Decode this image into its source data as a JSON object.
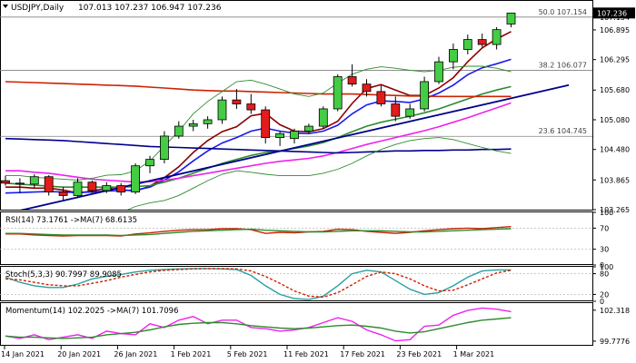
{
  "header": {
    "symbol": "USDJPY,Daily",
    "ohlc": "107.013 107.237 106.947 107.236"
  },
  "chart_data": [
    {
      "type": "candlestick",
      "y_ticks": [
        "107.154",
        "106.895",
        "106.295",
        "105.680",
        "105.080",
        "104.480",
        "103.865",
        "103.265"
      ],
      "last_price": "107.236",
      "fib_levels": [
        {
          "label": "50.0 107.154",
          "price": 107.154
        },
        {
          "label": "38.2 106.077",
          "price": 106.077
        },
        {
          "label": "23.6 104.745",
          "price": 104.745
        }
      ],
      "x_ticks": [
        "14 Jan 2021",
        "20 Jan 2021",
        "26 Jan 2021",
        "1 Feb 2021",
        "5 Feb 2021",
        "11 Feb 2021",
        "17 Feb 2021",
        "23 Feb 2021",
        "1 Mar 2021"
      ],
      "candles": [
        [
          103.85,
          103.95,
          103.75,
          103.8
        ],
        [
          103.8,
          103.9,
          103.6,
          103.78
        ],
        [
          103.78,
          103.98,
          103.7,
          103.93
        ],
        [
          103.93,
          103.96,
          103.55,
          103.62
        ],
        [
          103.62,
          103.72,
          103.45,
          103.55
        ],
        [
          103.55,
          103.9,
          103.5,
          103.82
        ],
        [
          103.82,
          103.85,
          103.6,
          103.65
        ],
        [
          103.65,
          103.82,
          103.6,
          103.75
        ],
        [
          103.75,
          103.8,
          103.55,
          103.62
        ],
        [
          103.62,
          104.2,
          103.58,
          104.15
        ],
        [
          104.15,
          104.35,
          104.0,
          104.28
        ],
        [
          104.28,
          104.85,
          104.2,
          104.75
        ],
        [
          104.75,
          105.05,
          104.7,
          104.95
        ],
        [
          104.95,
          105.08,
          104.85,
          105.0
        ],
        [
          105.0,
          105.15,
          104.9,
          105.08
        ],
        [
          105.08,
          105.55,
          105.0,
          105.48
        ],
        [
          105.48,
          105.7,
          105.3,
          105.4
        ],
        [
          105.4,
          105.6,
          105.2,
          105.28
        ],
        [
          105.28,
          105.35,
          104.6,
          104.72
        ],
        [
          104.72,
          104.85,
          104.55,
          104.8
        ],
        [
          104.7,
          104.9,
          104.6,
          104.85
        ],
        [
          104.85,
          105.0,
          104.8,
          104.95
        ],
        [
          104.95,
          105.35,
          104.9,
          105.3
        ],
        [
          105.3,
          106.0,
          105.25,
          105.95
        ],
        [
          105.95,
          106.2,
          105.75,
          105.8
        ],
        [
          105.8,
          105.9,
          105.55,
          105.65
        ],
        [
          105.65,
          105.78,
          105.35,
          105.4
        ],
        [
          105.4,
          105.55,
          105.05,
          105.15
        ],
        [
          105.15,
          105.4,
          105.1,
          105.3
        ],
        [
          105.3,
          105.95,
          105.25,
          105.85
        ],
        [
          105.85,
          106.35,
          105.8,
          106.25
        ],
        [
          106.25,
          106.62,
          106.1,
          106.5
        ],
        [
          106.5,
          106.8,
          106.4,
          106.7
        ],
        [
          106.7,
          106.82,
          106.55,
          106.6
        ],
        [
          106.6,
          106.95,
          106.5,
          106.9
        ],
        [
          107.013,
          107.237,
          106.947,
          107.236
        ]
      ],
      "overlays": [
        {
          "color": "#8b0000",
          "values": [
            103.72,
            103.72,
            103.7,
            103.7,
            103.66,
            103.6,
            103.64,
            103.7,
            103.67,
            103.64,
            103.74,
            103.91,
            104.13,
            104.42,
            104.66,
            104.84,
            104.94,
            105.16,
            105.21,
            104.98,
            104.85,
            104.84,
            104.9,
            105.05,
            105.41,
            105.71,
            105.79,
            105.68,
            105.57,
            105.57,
            105.72,
            105.93,
            106.25,
            106.53,
            106.71,
            106.86
          ]
        },
        {
          "color": "#1a1aee",
          "values": [
            103.6,
            103.61,
            103.62,
            103.63,
            103.62,
            103.61,
            103.62,
            103.64,
            103.65,
            103.66,
            103.72,
            103.86,
            104.03,
            104.25,
            104.45,
            104.61,
            104.72,
            104.85,
            104.91,
            104.85,
            104.81,
            104.8,
            104.85,
            104.97,
            105.2,
            105.38,
            105.46,
            105.45,
            105.43,
            105.5,
            105.62,
            105.78,
            105.99,
            106.13,
            106.21,
            106.3
          ]
        },
        {
          "color": "#2e8b2e",
          "values": [
            103.8,
            103.78,
            103.76,
            103.74,
            103.72,
            103.72,
            103.72,
            103.72,
            103.72,
            103.73,
            103.75,
            103.82,
            103.9,
            104.0,
            104.1,
            104.2,
            104.28,
            104.36,
            104.42,
            104.45,
            104.5,
            104.55,
            104.62,
            104.72,
            104.84,
            104.95,
            105.03,
            105.09,
            105.15,
            105.22,
            105.3,
            105.4,
            105.5,
            105.6,
            105.68,
            105.75
          ]
        },
        {
          "color": "#ee22ee",
          "values": [
            104.05,
            104.05,
            104.02,
            104.0,
            103.96,
            103.92,
            103.88,
            103.86,
            103.84,
            103.82,
            103.83,
            103.86,
            103.9,
            103.95,
            104.0,
            104.05,
            104.1,
            104.15,
            104.2,
            104.24,
            104.27,
            104.3,
            104.35,
            104.42,
            104.5,
            104.58,
            104.65,
            104.72,
            104.79,
            104.86,
            104.94,
            105.03,
            105.12,
            105.22,
            105.32,
            105.42
          ]
        },
        {
          "color": "#00008b",
          "values": [
            104.7,
            104.69,
            104.68,
            104.67,
            104.66,
            104.64,
            104.62,
            104.6,
            104.58,
            104.56,
            104.54,
            104.53,
            104.52,
            104.51,
            104.5,
            104.49,
            104.48,
            104.47,
            104.46,
            104.45,
            104.44,
            104.43,
            104.42,
            104.41,
            104.42,
            104.43,
            104.44,
            104.45,
            104.45,
            104.46,
            104.46,
            104.47,
            104.47,
            104.48,
            104.48,
            104.49
          ]
        },
        {
          "color": "#cc2200",
          "values": [
            105.85,
            105.84,
            105.83,
            105.82,
            105.81,
            105.8,
            105.79,
            105.78,
            105.77,
            105.76,
            105.74,
            105.72,
            105.7,
            105.68,
            105.67,
            105.66,
            105.66,
            105.65,
            105.64,
            105.63,
            105.62,
            105.61,
            105.6,
            105.6,
            105.6,
            105.59,
            105.58,
            105.57,
            105.56,
            105.56,
            105.55,
            105.55,
            105.55,
            105.55,
            105.55,
            105.55
          ]
        },
        {
          "color": "#2e8b2e",
          "values": [
            103.95,
            103.95,
            103.92,
            103.9,
            103.88,
            103.86,
            103.9,
            103.96,
            103.97,
            104.05,
            104.25,
            104.55,
            104.85,
            105.2,
            105.45,
            105.65,
            105.85,
            105.88,
            105.8,
            105.7,
            105.6,
            105.55,
            105.62,
            105.82,
            106.0,
            106.1,
            106.15,
            106.12,
            106.08,
            106.05,
            106.08,
            106.14,
            106.16,
            106.16,
            106.12,
            106.05
          ]
        },
        {
          "color": "#2e8b2e",
          "values": [
            103.0,
            103.0,
            103.0,
            103.0,
            103.0,
            103.0,
            103.02,
            103.1,
            103.2,
            103.33,
            103.4,
            103.45,
            103.55,
            103.7,
            103.85,
            103.98,
            104.05,
            104.02,
            103.98,
            103.95,
            103.95,
            103.95,
            104.0,
            104.08,
            104.2,
            104.35,
            104.48,
            104.58,
            104.66,
            104.7,
            104.72,
            104.68,
            104.6,
            104.52,
            104.45,
            104.4
          ]
        }
      ],
      "trendline": {
        "color": "#00008b",
        "from_index": 0,
        "from_price": 103.18,
        "to_index": 39,
        "to_price": 105.78
      }
    },
    {
      "type": "line",
      "label": "RSI(14) 73.1761   ->MA(7) 68.6135",
      "y_ticks": [
        "100",
        "70",
        "30",
        "0"
      ],
      "levels": [
        70,
        30
      ],
      "series": [
        {
          "color": "#cc2200",
          "values": [
            59,
            59,
            57,
            56,
            55,
            56,
            56,
            56,
            55,
            59,
            61,
            64,
            66,
            67,
            67,
            69,
            69,
            67,
            60,
            62,
            61,
            63,
            64,
            68,
            67,
            64,
            62,
            60,
            62,
            65,
            67,
            69,
            70,
            69,
            71,
            73
          ]
        },
        {
          "color": "#2e8b2e",
          "values": [
            60,
            60,
            59,
            58,
            57,
            57,
            57,
            57,
            56,
            57,
            58,
            60,
            62,
            64,
            65,
            66,
            67,
            68,
            66,
            65,
            64,
            63,
            63,
            64,
            65,
            65,
            65,
            64,
            63,
            63,
            64,
            65,
            66,
            67,
            68,
            69
          ]
        }
      ]
    },
    {
      "type": "line",
      "label": "Stoch(5,3,3) 90.7997 89.9085",
      "y_ticks": [
        "100",
        "80",
        "20",
        "0"
      ],
      "levels": [
        80,
        20
      ],
      "series": [
        {
          "color": "#2aa0a0",
          "values": [
            70,
            55,
            45,
            40,
            40,
            50,
            65,
            72,
            78,
            85,
            90,
            92,
            94,
            95,
            95,
            94,
            92,
            75,
            45,
            20,
            8,
            5,
            15,
            45,
            80,
            90,
            85,
            60,
            35,
            20,
            25,
            45,
            70,
            88,
            91,
            91
          ]
        },
        {
          "color": "#cc2200",
          "dashed": true,
          "values": [
            65,
            62,
            55,
            48,
            45,
            45,
            52,
            60,
            70,
            78,
            85,
            90,
            92,
            94,
            95,
            95,
            94,
            88,
            72,
            52,
            30,
            15,
            12,
            25,
            48,
            72,
            85,
            80,
            65,
            45,
            30,
            32,
            48,
            65,
            82,
            90
          ]
        }
      ]
    },
    {
      "type": "line",
      "label": "Momentum(14) 102.2025   ->MA(7) 101.7096",
      "y_ticks": [
        "102.318",
        "99.7776"
      ],
      "series": [
        {
          "color": "#ee22ee",
          "values": [
            100.2,
            100.0,
            100.3,
            99.9,
            100.1,
            100.3,
            100.0,
            100.6,
            100.4,
            100.3,
            101.2,
            100.9,
            101.5,
            101.8,
            101.2,
            101.5,
            101.5,
            100.9,
            100.8,
            100.6,
            100.7,
            100.9,
            101.3,
            101.7,
            101.4,
            100.7,
            100.3,
            99.8,
            99.9,
            101.0,
            101.1,
            101.9,
            102.3,
            102.5,
            102.4,
            102.2
          ]
        },
        {
          "color": "#2e8b2e",
          "values": [
            100.2,
            100.1,
            100.1,
            100.05,
            100.0,
            100.05,
            100.1,
            100.3,
            100.4,
            100.5,
            100.7,
            100.95,
            101.15,
            101.25,
            101.3,
            101.3,
            101.2,
            101.05,
            100.95,
            100.85,
            100.8,
            100.85,
            100.95,
            101.05,
            101.1,
            101.0,
            100.85,
            100.6,
            100.45,
            100.55,
            100.8,
            101.05,
            101.3,
            101.5,
            101.6,
            101.7
          ]
        }
      ]
    }
  ]
}
